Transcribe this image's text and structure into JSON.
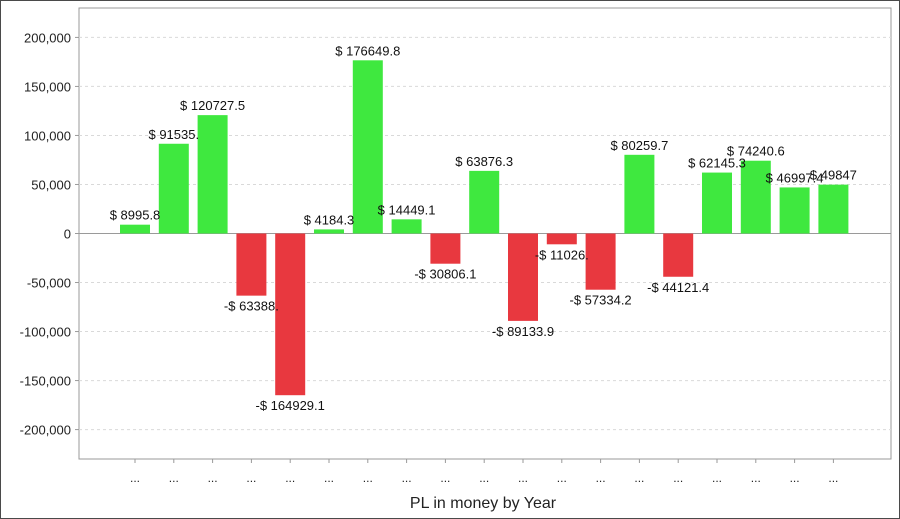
{
  "chart_data": {
    "type": "bar",
    "title": "",
    "xlabel": "PL in money by Year",
    "ylabel": "",
    "ylim": [
      -230000,
      230000
    ],
    "y_ticks": [
      -200000,
      -150000,
      -100000,
      -50000,
      0,
      50000,
      100000,
      150000,
      200000
    ],
    "y_tick_labels": [
      "-200,000",
      "-150,000",
      "-100,000",
      "-50,000",
      "0",
      "50,000",
      "100,000",
      "150,000",
      "200,000"
    ],
    "grid": true,
    "legend": "none",
    "categories": [
      "...",
      "...",
      "...",
      "...",
      "...",
      "...",
      "...",
      "...",
      "...",
      "...",
      "...",
      "...",
      "...",
      "...",
      "...",
      "...",
      "...",
      "...",
      "..."
    ],
    "values": [
      8995.8,
      91535.0,
      120727.5,
      -63388.0,
      -164929.1,
      4184.3,
      176649.8,
      14449.1,
      -30806.1,
      63876.3,
      -89133.9,
      -11026.0,
      -57334.2,
      80259.7,
      -44121.4,
      62145.3,
      74240.6,
      46997.4,
      49847
    ],
    "data_labels": [
      "$ 8995.8",
      "$ 91535.",
      "$ 120727.5",
      "-$ 63388.",
      "-$ 164929.1",
      "$ 4184.3",
      "$ 176649.8",
      "$ 14449.1",
      "-$ 30806.1",
      "$ 63876.3",
      "-$ 89133.9",
      "-$ 11026.",
      "-$ 57334.2",
      "$ 80259.7",
      "-$ 44121.4",
      "$ 62145.3",
      "$ 74240.6",
      "$ 46997.4",
      "$ 49847"
    ],
    "colors": {
      "positive": "#3fe83f",
      "negative": "#e8383f"
    }
  }
}
